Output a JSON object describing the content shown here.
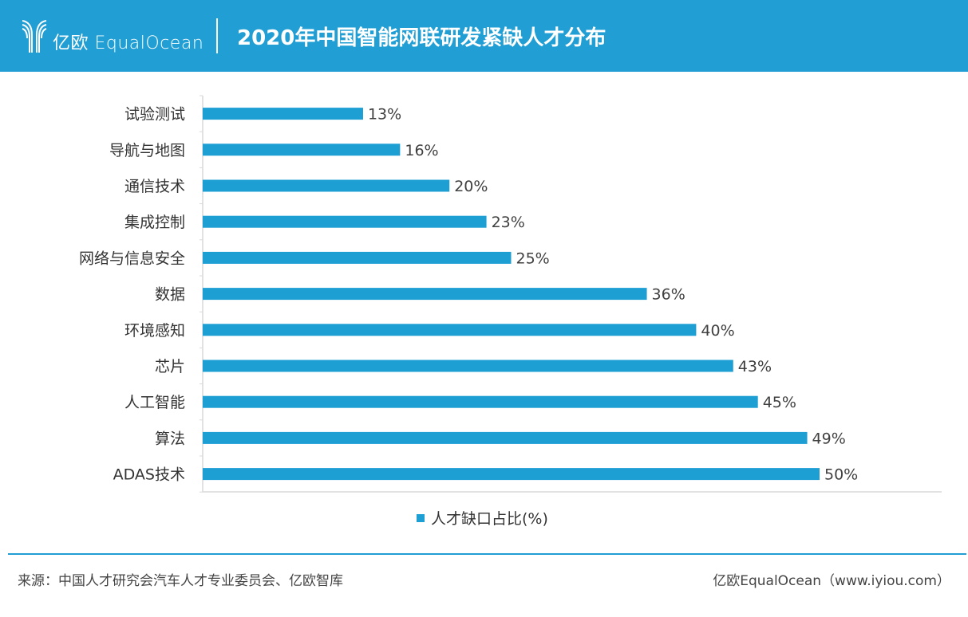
{
  "header": {
    "logo_text": "亿欧 EqualOcean",
    "title": "2020年中国智能网联研发紧缺人才分布"
  },
  "chart_data": {
    "type": "bar",
    "orientation": "horizontal",
    "title": "2020年中国智能网联研发紧缺人才分布",
    "categories": [
      "试验测试",
      "导航与地图",
      "通信技术",
      "集成控制",
      "网络与信息安全",
      "数据",
      "环境感知",
      "芯片",
      "人工智能",
      "算法",
      "ADAS技术"
    ],
    "series": [
      {
        "name": "人才缺口占比(%)",
        "values": [
          13,
          16,
          20,
          23,
          25,
          36,
          40,
          43,
          45,
          49,
          50
        ],
        "color": "#1e9fd4"
      }
    ],
    "value_labels": [
      "13%",
      "16%",
      "20%",
      "23%",
      "25%",
      "36%",
      "40%",
      "43%",
      "45%",
      "49%",
      "50%"
    ],
    "xlim": [
      0,
      60
    ],
    "grid": false,
    "legend": "bottom"
  },
  "footer": {
    "source": "来源：中国人才研究会汽车人才专业委员会、亿欧智库",
    "credit": "亿欧EqualOcean（www.iyiou.com）"
  }
}
